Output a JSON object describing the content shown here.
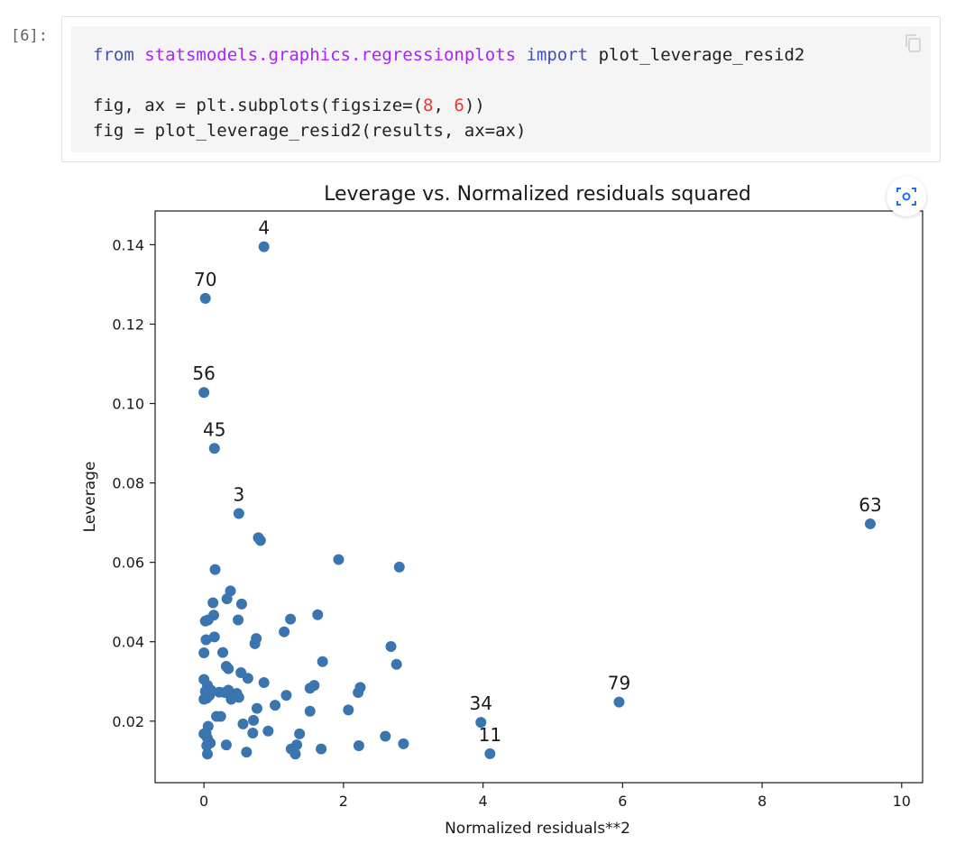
{
  "cell": {
    "prompt": "[6]:",
    "code_parts": {
      "l1_from": "from",
      "l1_module": "statsmodels.graphics.regressionplots",
      "l1_import": "import",
      "l1_name": "plot_leverage_resid2",
      "l3_a": "fig, ax = plt.subplots(figsize=(",
      "l3_n1": "8",
      "l3_b": ", ",
      "l3_n2": "6",
      "l3_c": "))",
      "l4": "fig = plot_leverage_resid2(results, ax=ax)"
    },
    "copy_icon": "copy-icon",
    "camera_icon": "screenshot-icon"
  },
  "chart_data": {
    "type": "scatter",
    "title": "Leverage vs. Normalized residuals squared",
    "xlabel": "Normalized residuals**2",
    "ylabel": "Leverage",
    "xlim": [
      -0.7,
      10.3
    ],
    "ylim": [
      0.0045,
      0.1485
    ],
    "xticks": [
      0,
      2,
      4,
      6,
      8,
      10
    ],
    "yticks": [
      0.02,
      0.04,
      0.06,
      0.08,
      0.1,
      0.12,
      0.14
    ],
    "xtick_labels": [
      "0",
      "2",
      "4",
      "6",
      "8",
      "10"
    ],
    "ytick_labels": [
      "0.02",
      "0.04",
      "0.06",
      "0.08",
      "0.10",
      "0.12",
      "0.14"
    ],
    "point_color": "#3b75af",
    "points": [
      {
        "x": 0.86,
        "y": 0.1395,
        "label": "4"
      },
      {
        "x": 0.02,
        "y": 0.1265,
        "label": "70"
      },
      {
        "x": 0.0,
        "y": 0.1028,
        "label": "56"
      },
      {
        "x": 0.15,
        "y": 0.0887,
        "label": "45"
      },
      {
        "x": 0.5,
        "y": 0.0723,
        "label": "3"
      },
      {
        "x": 9.55,
        "y": 0.0697,
        "label": "63"
      },
      {
        "x": 5.95,
        "y": 0.0248,
        "label": "79"
      },
      {
        "x": 3.97,
        "y": 0.0197,
        "label": "34"
      },
      {
        "x": 4.1,
        "y": 0.0118,
        "label": "11"
      },
      {
        "x": 0.78,
        "y": 0.0662
      },
      {
        "x": 0.81,
        "y": 0.0655
      },
      {
        "x": 1.93,
        "y": 0.0607
      },
      {
        "x": 2.8,
        "y": 0.0588
      },
      {
        "x": 0.16,
        "y": 0.0582
      },
      {
        "x": 0.38,
        "y": 0.0528
      },
      {
        "x": 0.33,
        "y": 0.0508
      },
      {
        "x": 0.13,
        "y": 0.0498
      },
      {
        "x": 0.54,
        "y": 0.0495
      },
      {
        "x": 1.63,
        "y": 0.0468
      },
      {
        "x": 0.14,
        "y": 0.0467
      },
      {
        "x": 0.02,
        "y": 0.0452
      },
      {
        "x": 0.06,
        "y": 0.0455
      },
      {
        "x": 0.49,
        "y": 0.0455
      },
      {
        "x": 1.24,
        "y": 0.0457
      },
      {
        "x": 1.15,
        "y": 0.0425
      },
      {
        "x": 0.15,
        "y": 0.0412
      },
      {
        "x": 0.03,
        "y": 0.0405
      },
      {
        "x": 0.75,
        "y": 0.0408
      },
      {
        "x": 0.73,
        "y": 0.0395
      },
      {
        "x": 2.68,
        "y": 0.0388
      },
      {
        "x": 0.27,
        "y": 0.0373
      },
      {
        "x": 0.0,
        "y": 0.0372
      },
      {
        "x": 1.7,
        "y": 0.035
      },
      {
        "x": 2.76,
        "y": 0.0343
      },
      {
        "x": 0.32,
        "y": 0.0338
      },
      {
        "x": 0.35,
        "y": 0.0332
      },
      {
        "x": 0.53,
        "y": 0.0322
      },
      {
        "x": 0.0,
        "y": 0.0305
      },
      {
        "x": 0.63,
        "y": 0.0308
      },
      {
        "x": 0.86,
        "y": 0.0297
      },
      {
        "x": 0.05,
        "y": 0.029
      },
      {
        "x": 1.58,
        "y": 0.029
      },
      {
        "x": 2.24,
        "y": 0.0285
      },
      {
        "x": 1.52,
        "y": 0.0283
      },
      {
        "x": 0.1,
        "y": 0.0278
      },
      {
        "x": 0.35,
        "y": 0.0278
      },
      {
        "x": 0.02,
        "y": 0.0275
      },
      {
        "x": 0.22,
        "y": 0.0273
      },
      {
        "x": 0.3,
        "y": 0.0272
      },
      {
        "x": 0.47,
        "y": 0.027
      },
      {
        "x": 2.21,
        "y": 0.0272
      },
      {
        "x": 0.08,
        "y": 0.0265
      },
      {
        "x": 1.18,
        "y": 0.0265
      },
      {
        "x": 0.44,
        "y": 0.0262
      },
      {
        "x": 0.5,
        "y": 0.026
      },
      {
        "x": 0.04,
        "y": 0.0258
      },
      {
        "x": 0.0,
        "y": 0.0255
      },
      {
        "x": 0.39,
        "y": 0.0255
      },
      {
        "x": 1.02,
        "y": 0.024
      },
      {
        "x": 0.76,
        "y": 0.0232
      },
      {
        "x": 1.52,
        "y": 0.0225
      },
      {
        "x": 2.07,
        "y": 0.0228
      },
      {
        "x": 0.18,
        "y": 0.0212
      },
      {
        "x": 0.24,
        "y": 0.0212
      },
      {
        "x": 0.71,
        "y": 0.0202
      },
      {
        "x": 0.56,
        "y": 0.0193
      },
      {
        "x": 0.06,
        "y": 0.0187
      },
      {
        "x": 0.0,
        "y": 0.0168
      },
      {
        "x": 0.03,
        "y": 0.017
      },
      {
        "x": 0.7,
        "y": 0.017
      },
      {
        "x": 0.92,
        "y": 0.0175
      },
      {
        "x": 1.37,
        "y": 0.0168
      },
      {
        "x": 2.6,
        "y": 0.0162
      },
      {
        "x": 0.05,
        "y": 0.0157
      },
      {
        "x": 0.09,
        "y": 0.0145
      },
      {
        "x": 0.04,
        "y": 0.0138
      },
      {
        "x": 0.32,
        "y": 0.014
      },
      {
        "x": 1.33,
        "y": 0.014
      },
      {
        "x": 2.22,
        "y": 0.0138
      },
      {
        "x": 2.86,
        "y": 0.0143
      },
      {
        "x": 1.25,
        "y": 0.013
      },
      {
        "x": 1.68,
        "y": 0.013
      },
      {
        "x": 0.05,
        "y": 0.0117
      },
      {
        "x": 0.61,
        "y": 0.0122
      },
      {
        "x": 1.31,
        "y": 0.0117
      }
    ]
  }
}
